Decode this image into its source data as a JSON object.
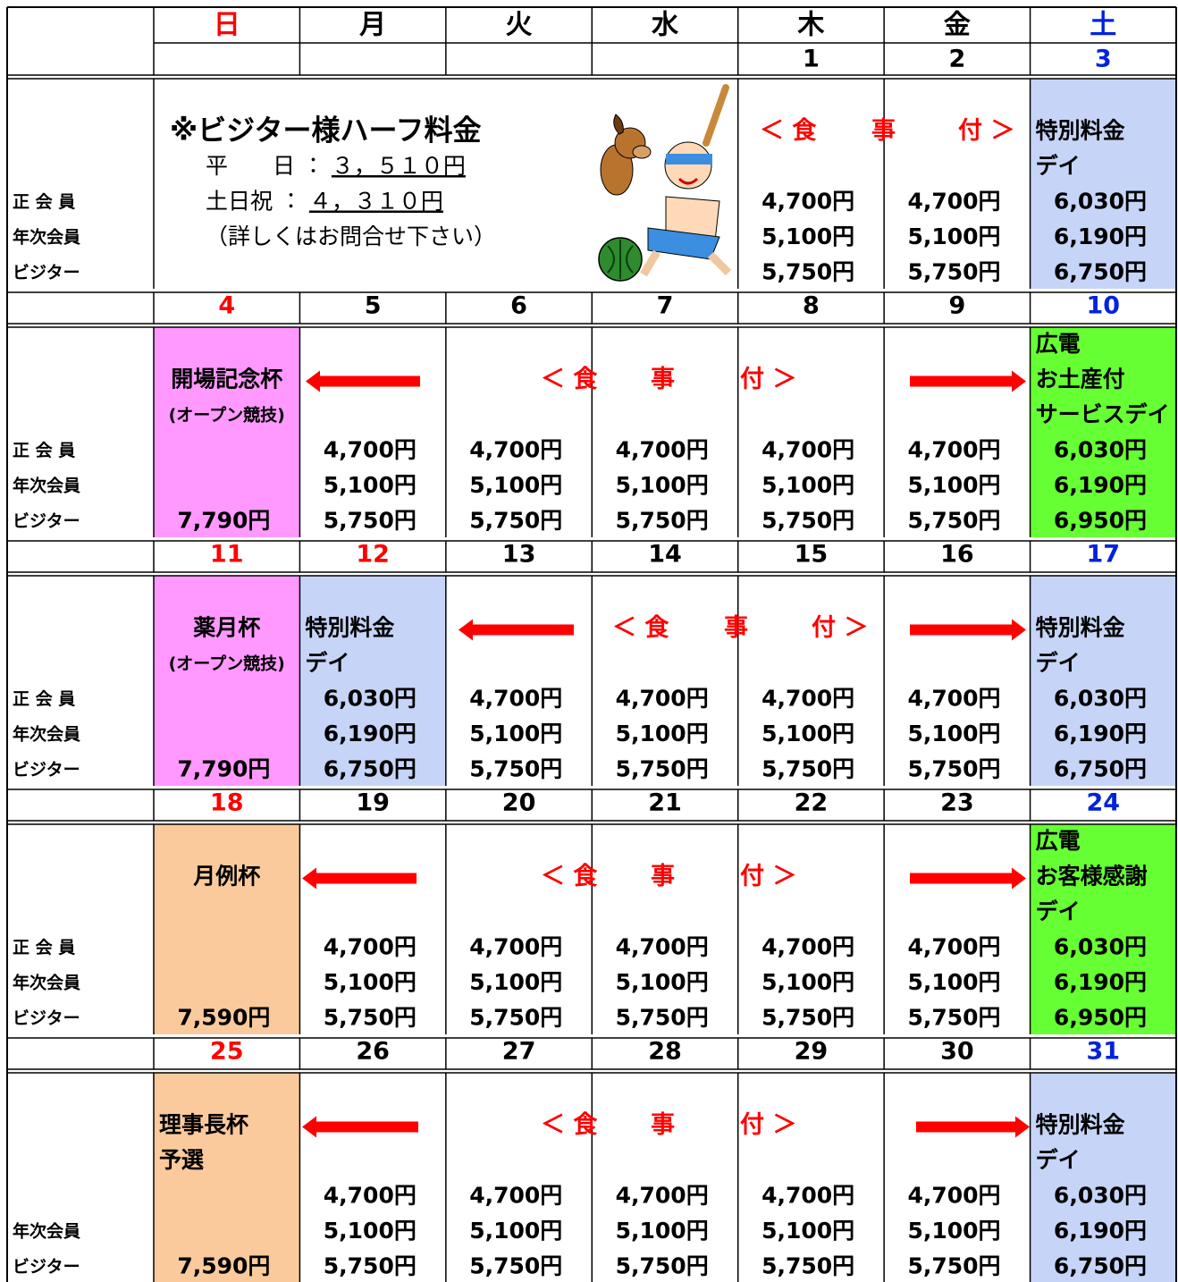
{
  "header": {
    "weekdays": [
      "日",
      "月",
      "火",
      "水",
      "木",
      "金",
      "土"
    ]
  },
  "weeks": [
    {
      "dates": [
        null,
        null,
        null,
        null,
        "1",
        "2",
        "3"
      ],
      "labels": [
        "正 会 員",
        "年次会員",
        "ビジター"
      ],
      "note": {
        "title": "※ビジター様ハーフ料金",
        "lines": [
          {
            "label": "平　　日 ： ",
            "value": "３，５１０円"
          },
          {
            "label": "土日祝 ： ",
            "value": "４，３１０円"
          },
          {
            "label": "（詳しくはお問合せ下さい）"
          }
        ]
      },
      "banner": [
        "＜ 食",
        "事",
        "付 ＞"
      ],
      "cells": [
        null,
        null,
        null,
        null,
        {
          "lines": [
            null,
            null,
            null,
            "4,700円",
            "5,100円",
            "5,750円"
          ]
        },
        {
          "lines": [
            null,
            null,
            null,
            "4,700円",
            "5,100円",
            "5,750円"
          ]
        },
        {
          "fill": "#c6d5f7",
          "lines": [
            null,
            "特別料金",
            "デイ",
            "6,030円",
            "6,190円",
            "6,750円"
          ]
        }
      ]
    },
    {
      "dates": [
        "4",
        "5",
        "6",
        "7",
        "8",
        "9",
        "10"
      ],
      "labels": [
        "正 会 員",
        "年次会員",
        "ビジター"
      ],
      "banner": [
        "＜ 食",
        "事",
        "付 ＞"
      ],
      "cells": [
        {
          "fill": "#ff99ff",
          "lines": [
            null,
            "開場記念杯",
            "(オープン競技)",
            null,
            null,
            "7,790円"
          ]
        },
        {
          "lines": [
            null,
            null,
            null,
            "4,700円",
            "5,100円",
            "5,750円"
          ]
        },
        {
          "lines": [
            null,
            null,
            null,
            "4,700円",
            "5,100円",
            "5,750円"
          ]
        },
        {
          "lines": [
            null,
            null,
            null,
            "4,700円",
            "5,100円",
            "5,750円"
          ]
        },
        {
          "lines": [
            null,
            null,
            null,
            "4,700円",
            "5,100円",
            "5,750円"
          ]
        },
        {
          "lines": [
            null,
            null,
            null,
            "4,700円",
            "5,100円",
            "5,750円"
          ]
        },
        {
          "fill": "#66ff33",
          "lines": [
            "広電",
            "お土産付",
            "サービスデイ",
            "6,030円",
            "6,190円",
            "6,950円"
          ]
        }
      ]
    },
    {
      "dates": [
        "11",
        "12",
        "13",
        "14",
        "15",
        "16",
        "17"
      ],
      "labels": [
        "正 会 員",
        "年次会員",
        "ビジター"
      ],
      "banner": [
        "＜ 食",
        "事",
        "付 ＞"
      ],
      "cells": [
        {
          "fill": "#ff99ff",
          "lines": [
            null,
            "薬月杯",
            "(オープン競技)",
            null,
            null,
            "7,790円"
          ]
        },
        {
          "fill": "#c6d5f7",
          "lines": [
            null,
            "特別料金",
            "デイ",
            "6,030円",
            "6,190円",
            "6,750円"
          ]
        },
        {
          "lines": [
            null,
            null,
            null,
            "4,700円",
            "5,100円",
            "5,750円"
          ]
        },
        {
          "lines": [
            null,
            null,
            null,
            "4,700円",
            "5,100円",
            "5,750円"
          ]
        },
        {
          "lines": [
            null,
            null,
            null,
            "4,700円",
            "5,100円",
            "5,750円"
          ]
        },
        {
          "lines": [
            null,
            null,
            null,
            "4,700円",
            "5,100円",
            "5,750円"
          ]
        },
        {
          "fill": "#c6d5f7",
          "lines": [
            null,
            "特別料金",
            "デイ",
            "6,030円",
            "6,190円",
            "6,750円"
          ]
        }
      ]
    },
    {
      "dates": [
        "18",
        "19",
        "20",
        "21",
        "22",
        "23",
        "24"
      ],
      "labels": [
        "正 会 員",
        "年次会員",
        "ビジター"
      ],
      "banner": [
        "＜ 食",
        "事",
        "付 ＞"
      ],
      "cells": [
        {
          "fill": "#fbca9c",
          "lines": [
            null,
            "月例杯",
            null,
            null,
            null,
            "7,590円"
          ]
        },
        {
          "lines": [
            null,
            null,
            null,
            "4,700円",
            "5,100円",
            "5,750円"
          ]
        },
        {
          "lines": [
            null,
            null,
            null,
            "4,700円",
            "5,100円",
            "5,750円"
          ]
        },
        {
          "lines": [
            null,
            null,
            null,
            "4,700円",
            "5,100円",
            "5,750円"
          ]
        },
        {
          "lines": [
            null,
            null,
            null,
            "4,700円",
            "5,100円",
            "5,750円"
          ]
        },
        {
          "lines": [
            null,
            null,
            null,
            "4,700円",
            "5,100円",
            "5,750円"
          ]
        },
        {
          "fill": "#66ff33",
          "lines": [
            "広電",
            "お客様感謝",
            "デイ",
            "6,030円",
            "6,190円",
            "6,950円"
          ]
        }
      ]
    },
    {
      "dates": [
        "25",
        "26",
        "27",
        "28",
        "29",
        "30",
        "31"
      ],
      "labels": [
        null,
        "年次会員",
        "ビジター"
      ],
      "banner": [
        "＜ 食",
        "事",
        "付 ＞"
      ],
      "cells": [
        {
          "fill": "#fbca9c",
          "lines": [
            null,
            "理事長杯",
            "予選",
            null,
            null,
            "7,590円"
          ]
        },
        {
          "lines": [
            null,
            null,
            null,
            "4,700円",
            "5,100円",
            "5,750円"
          ]
        },
        {
          "lines": [
            null,
            null,
            null,
            "4,700円",
            "5,100円",
            "5,750円"
          ]
        },
        {
          "lines": [
            null,
            null,
            null,
            "4,700円",
            "5,100円",
            "5,750円"
          ]
        },
        {
          "lines": [
            null,
            null,
            null,
            "4,700円",
            "5,100円",
            "5,750円"
          ]
        },
        {
          "lines": [
            null,
            null,
            null,
            "4,700円",
            "5,100円",
            "5,750円"
          ]
        },
        {
          "fill": "#c6d5f7",
          "lines": [
            null,
            "特別料金",
            "デイ",
            "6,030円",
            "6,190円",
            "6,750円"
          ]
        }
      ]
    }
  ]
}
